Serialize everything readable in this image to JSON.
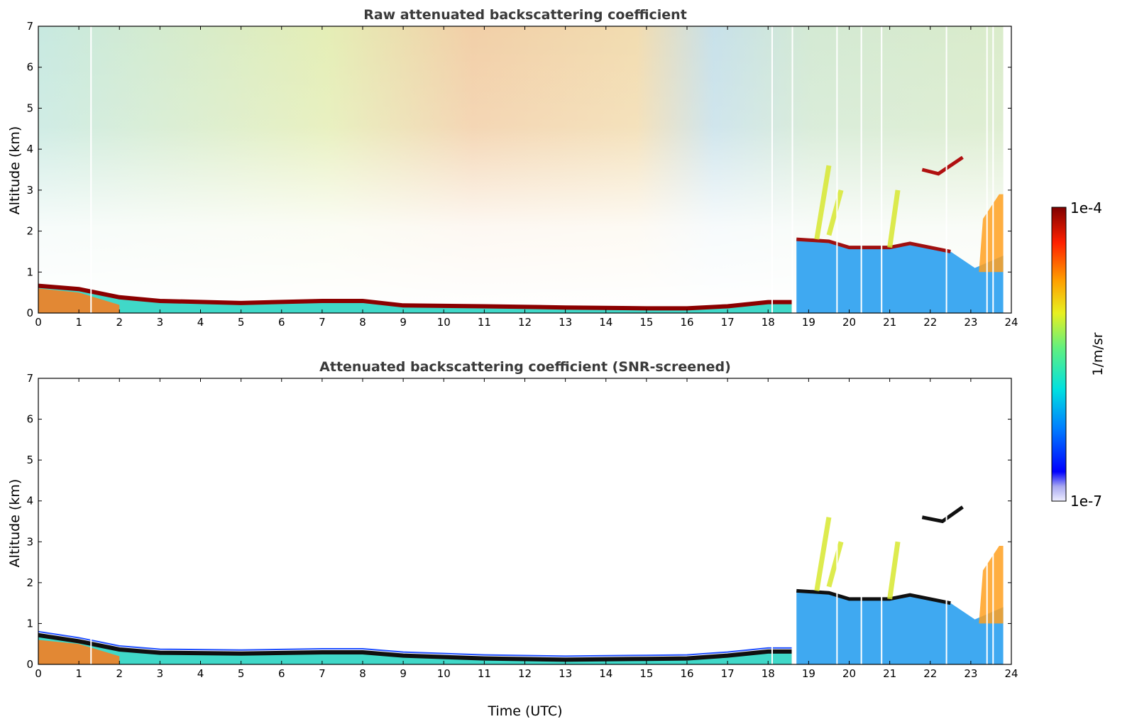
{
  "chart_data": [
    {
      "type": "heatmap",
      "title": "Raw attenuated backscattering coefficient",
      "xlabel": "",
      "ylabel": "Altitude (km)",
      "xlim": [
        0,
        24
      ],
      "ylim": [
        0,
        7
      ],
      "x_ticks": [
        "0",
        "1",
        "2",
        "3",
        "4",
        "5",
        "6",
        "7",
        "8",
        "9",
        "10",
        "11",
        "12",
        "13",
        "14",
        "15",
        "16",
        "17",
        "18",
        "19",
        "20",
        "21",
        "22",
        "23",
        "24"
      ],
      "y_ticks": [
        "0",
        "1",
        "2",
        "3",
        "4",
        "5",
        "6",
        "7"
      ],
      "features": {
        "boundary_layer_top_km": [
          [
            0,
            0.7
          ],
          [
            1,
            0.62
          ],
          [
            2,
            0.42
          ],
          [
            3,
            0.33
          ],
          [
            5,
            0.28
          ],
          [
            7,
            0.33
          ],
          [
            8,
            0.33
          ],
          [
            9,
            0.22
          ],
          [
            11,
            0.2
          ],
          [
            13,
            0.17
          ],
          [
            15,
            0.15
          ],
          [
            16,
            0.15
          ],
          [
            17,
            0.2
          ],
          [
            18,
            0.3
          ],
          [
            18.6,
            0.3
          ]
        ],
        "cloud_layer_km": [
          [
            18.7,
            1.8
          ],
          [
            19.5,
            1.75
          ],
          [
            20,
            1.6
          ],
          [
            21,
            1.6
          ],
          [
            21.5,
            1.7
          ],
          [
            22.5,
            1.5
          ]
        ],
        "elevated_cloud_km": [
          [
            21.8,
            3.5
          ],
          [
            22.2,
            3.4
          ],
          [
            22.8,
            3.8
          ],
          [
            23.3,
            2.2
          ],
          [
            23.7,
            2.9
          ]
        ]
      }
    },
    {
      "type": "heatmap",
      "title": "Attenuated backscattering coefficient (SNR-screened)",
      "xlabel": "Time (UTC)",
      "ylabel": "Altitude (km)",
      "xlim": [
        0,
        24
      ],
      "ylim": [
        0,
        7
      ],
      "x_ticks": [
        "0",
        "1",
        "2",
        "3",
        "4",
        "5",
        "6",
        "7",
        "8",
        "9",
        "10",
        "11",
        "12",
        "13",
        "14",
        "15",
        "16",
        "17",
        "18",
        "19",
        "20",
        "21",
        "22",
        "23",
        "24"
      ],
      "y_ticks": [
        "0",
        "1",
        "2",
        "3",
        "4",
        "5",
        "6",
        "7"
      ],
      "features": {
        "boundary_layer_top_km": [
          [
            0,
            0.75
          ],
          [
            1,
            0.6
          ],
          [
            2,
            0.4
          ],
          [
            3,
            0.32
          ],
          [
            5,
            0.3
          ],
          [
            7,
            0.33
          ],
          [
            8,
            0.33
          ],
          [
            9,
            0.25
          ],
          [
            11,
            0.18
          ],
          [
            13,
            0.15
          ],
          [
            15,
            0.17
          ],
          [
            16,
            0.18
          ],
          [
            17,
            0.25
          ],
          [
            18,
            0.35
          ],
          [
            18.6,
            0.35
          ]
        ],
        "cloud_layer_km": [
          [
            18.7,
            1.8
          ],
          [
            19.5,
            1.75
          ],
          [
            20,
            1.6
          ],
          [
            21,
            1.6
          ],
          [
            21.5,
            1.7
          ],
          [
            22.5,
            1.5
          ]
        ]
      }
    }
  ],
  "colorbar": {
    "label": "1/m/sr",
    "max_label": "1e-4",
    "min_label": "1e-7",
    "scale": "log",
    "range": [
      1e-07,
      0.0001
    ]
  }
}
